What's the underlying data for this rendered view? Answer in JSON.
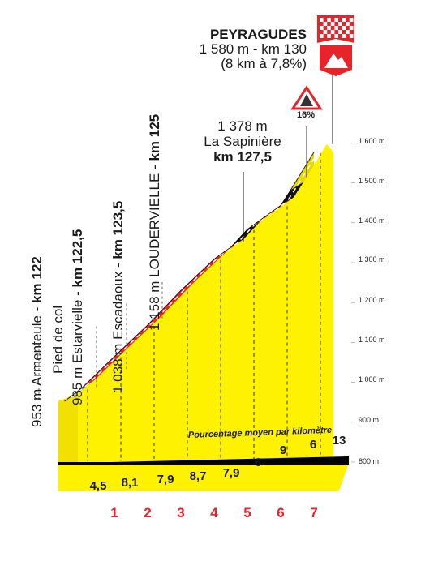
{
  "chart_data": {
    "type": "area",
    "summit": {
      "name": "PEYRAGUDES",
      "detail": "1 580 m - km 130",
      "climb": "(8 km à 7,8%)"
    },
    "max_gradient": "16%",
    "waypoints": [
      {
        "alt": 953,
        "text": "953 m Armenteule - ",
        "km": "km 122"
      },
      {
        "alt": 985,
        "text": "Pied de col",
        "km": ""
      },
      {
        "alt": 985,
        "text": "985 m Estarvielle - ",
        "km": "km 122,5"
      },
      {
        "alt": 1038,
        "text": "1 038 m Escadaoux - ",
        "km": "km 123,5"
      },
      {
        "alt": 1158,
        "text": "1 158 m LOUDERVIELLE - ",
        "km": "km 125"
      }
    ],
    "sapiniere": {
      "alt_label": "1 378 m",
      "name": "La Sapinière",
      "km": "km 127,5"
    },
    "avg_label": "Pourcentage moyen par kilomètre",
    "y_axis": {
      "ticks": [
        "800 m",
        "900 m",
        "1 000 m",
        "1 100 m",
        "1 200 m",
        "1 300 m",
        "1 400 m",
        "1 500 m",
        "1 600 m"
      ],
      "min": 800,
      "max": 1600
    },
    "km_markers": [
      "1",
      "2",
      "3",
      "4",
      "5",
      "6",
      "7"
    ],
    "gradients": [
      "4,5",
      "8,1",
      "7,9",
      "8,7",
      "7,9",
      "6",
      "9",
      "6",
      "13"
    ],
    "profile": [
      {
        "km": -0.5,
        "alt": 953
      },
      {
        "km": 0,
        "alt": 985
      },
      {
        "km": 1,
        "alt": 1066
      },
      {
        "km": 2,
        "alt": 1145
      },
      {
        "km": 3,
        "alt": 1232
      },
      {
        "km": 4,
        "alt": 1311
      },
      {
        "km": 4.5,
        "alt": 1341
      },
      {
        "km": 5,
        "alt": 1386
      },
      {
        "km": 6,
        "alt": 1446
      },
      {
        "km": 6.3,
        "alt": 1485
      },
      {
        "km": 7,
        "alt": 1580
      }
    ],
    "segment_colors": [
      "#4aa3dc",
      "#e8242b",
      "#e8242b",
      "#e8242b",
      "#e8242b",
      "#e8242b",
      "#111111",
      "#e8242b",
      "#111111"
    ],
    "colors": {
      "fill": "#fff200",
      "red": "#e8242b",
      "black": "#111111",
      "blue": "#4aa3dc"
    }
  }
}
